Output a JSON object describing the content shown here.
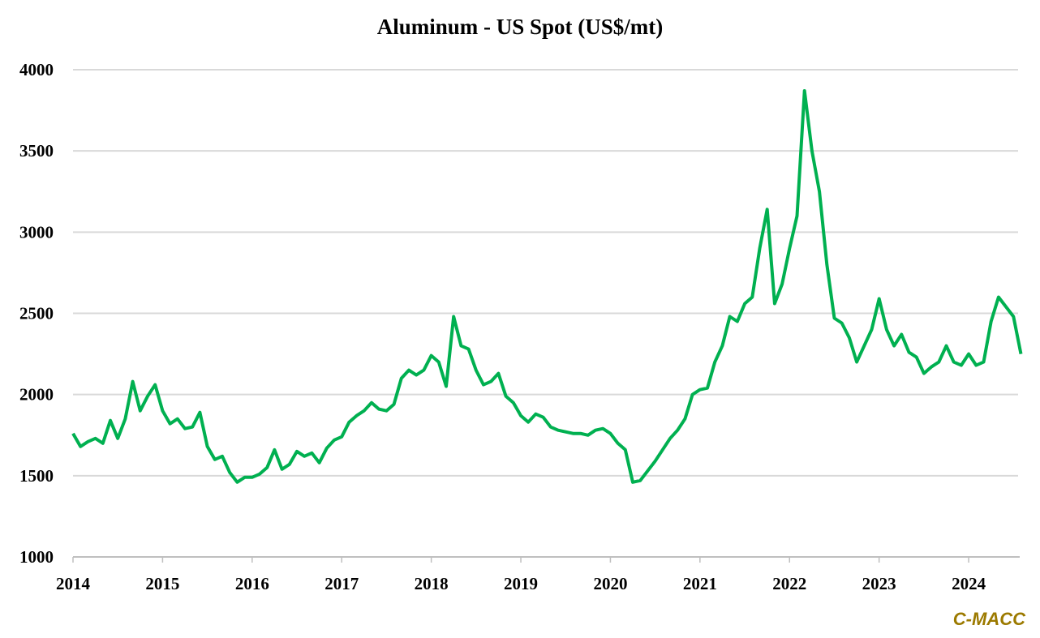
{
  "chart_data": {
    "type": "line",
    "title": "Aluminum  - US Spot (US$/mt)",
    "xlabel": "",
    "ylabel": "",
    "ylim": [
      1000,
      4000
    ],
    "xlim": [
      "2014-01",
      "2024-08"
    ],
    "grid": "horizontal",
    "line_color": "#00b050",
    "y_ticks": [
      "1000",
      "1500",
      "2000",
      "2500",
      "3000",
      "3500",
      "4000"
    ],
    "x_ticks": [
      "2014",
      "2015",
      "2016",
      "2017",
      "2018",
      "2019",
      "2020",
      "2021",
      "2022",
      "2023",
      "2024"
    ],
    "series": [
      {
        "x": [
          "2014-01",
          "2014-02",
          "2014-03",
          "2014-04",
          "2014-05",
          "2014-06",
          "2014-07",
          "2014-08",
          "2014-09",
          "2014-10",
          "2014-11",
          "2014-12",
          "2015-01",
          "2015-02",
          "2015-03",
          "2015-04",
          "2015-05",
          "2015-06",
          "2015-07",
          "2015-08",
          "2015-09",
          "2015-10",
          "2015-11",
          "2015-12",
          "2016-01",
          "2016-02",
          "2016-03",
          "2016-04",
          "2016-05",
          "2016-06",
          "2016-07",
          "2016-08",
          "2016-09",
          "2016-10",
          "2016-11",
          "2016-12",
          "2017-01",
          "2017-02",
          "2017-03",
          "2017-04",
          "2017-05",
          "2017-06",
          "2017-07",
          "2017-08",
          "2017-09",
          "2017-10",
          "2017-11",
          "2017-12",
          "2018-01",
          "2018-02",
          "2018-03",
          "2018-04",
          "2018-05",
          "2018-06",
          "2018-07",
          "2018-08",
          "2018-09",
          "2018-10",
          "2018-11",
          "2018-12",
          "2019-01",
          "2019-02",
          "2019-03",
          "2019-04",
          "2019-05",
          "2019-06",
          "2019-07",
          "2019-08",
          "2019-09",
          "2019-10",
          "2019-11",
          "2019-12",
          "2020-01",
          "2020-02",
          "2020-03",
          "2020-04",
          "2020-05",
          "2020-06",
          "2020-07",
          "2020-08",
          "2020-09",
          "2020-10",
          "2020-11",
          "2020-12",
          "2021-01",
          "2021-02",
          "2021-03",
          "2021-04",
          "2021-05",
          "2021-06",
          "2021-07",
          "2021-08",
          "2021-09",
          "2021-10",
          "2021-11",
          "2021-12",
          "2022-01",
          "2022-02",
          "2022-03",
          "2022-04",
          "2022-05",
          "2022-06",
          "2022-07",
          "2022-08",
          "2022-09",
          "2022-10",
          "2022-11",
          "2022-12",
          "2023-01",
          "2023-02",
          "2023-03",
          "2023-04",
          "2023-05",
          "2023-06",
          "2023-07",
          "2023-08",
          "2023-09",
          "2023-10",
          "2023-11",
          "2023-12",
          "2024-01",
          "2024-02",
          "2024-03",
          "2024-04",
          "2024-05",
          "2024-06",
          "2024-07",
          "2024-08"
        ],
        "values": [
          1760,
          1680,
          1710,
          1730,
          1700,
          1840,
          1730,
          1850,
          2080,
          1900,
          1990,
          2060,
          1900,
          1820,
          1850,
          1790,
          1800,
          1890,
          1680,
          1600,
          1620,
          1520,
          1460,
          1490,
          1490,
          1510,
          1550,
          1660,
          1540,
          1570,
          1650,
          1620,
          1640,
          1580,
          1670,
          1720,
          1740,
          1830,
          1870,
          1900,
          1950,
          1910,
          1900,
          1940,
          2100,
          2150,
          2120,
          2150,
          2240,
          2200,
          2050,
          2480,
          2300,
          2280,
          2150,
          2060,
          2080,
          2130,
          1990,
          1950,
          1870,
          1830,
          1880,
          1860,
          1800,
          1780,
          1770,
          1760,
          1760,
          1750,
          1780,
          1790,
          1760,
          1700,
          1660,
          1460,
          1470,
          1530,
          1590,
          1660,
          1730,
          1780,
          1850,
          2000,
          2030,
          2040,
          2200,
          2300,
          2480,
          2450,
          2560,
          2600,
          2900,
          3140,
          2560,
          2680,
          2900,
          3100,
          3870,
          3500,
          3250,
          2800,
          2470,
          2440,
          2350,
          2200,
          2300,
          2400,
          2590,
          2400,
          2300,
          2370,
          2260,
          2230,
          2130,
          2170,
          2200,
          2300,
          2200,
          2180,
          2250,
          2180,
          2200,
          2450,
          2600,
          2540,
          2480,
          2250
        ]
      }
    ]
  },
  "brand": "C-MACC"
}
